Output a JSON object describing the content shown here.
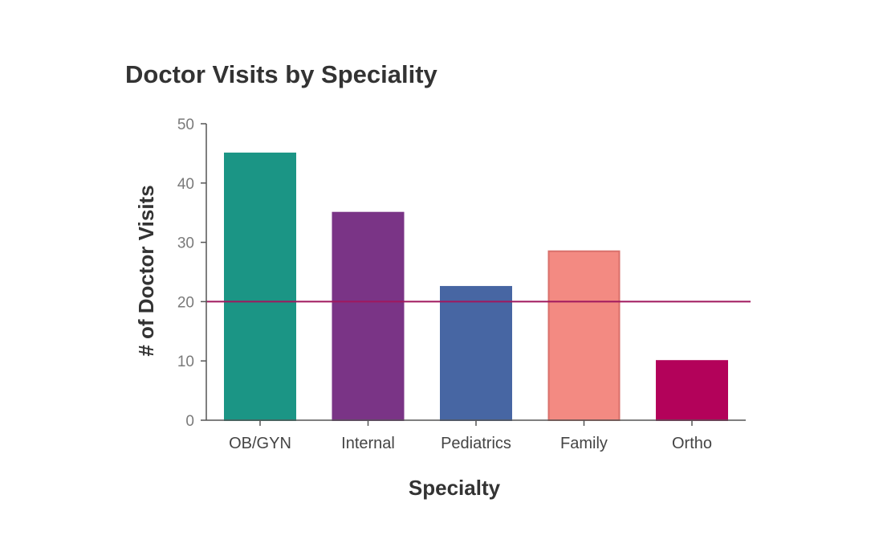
{
  "chart_data": {
    "type": "bar",
    "title": "Doctor Visits by Speciality",
    "xlabel": "Specialty",
    "ylabel": "# of Doctor Visits",
    "categories": [
      "OB/GYN",
      "Internal",
      "Pediatrics",
      "Family",
      "Ortho"
    ],
    "values": [
      45,
      35,
      22.5,
      28.5,
      10
    ],
    "colors": [
      "#1b9585",
      "#7a3486",
      "#4766a3",
      "#f38a82",
      "#b3025a"
    ],
    "bar_stroke_colors": [
      "#1b9585",
      "#7a3486",
      "#4766a3",
      "#d9706b",
      "#b3025a"
    ],
    "ylim": [
      0,
      50
    ],
    "yticks": [
      0,
      10,
      20,
      30,
      40,
      50
    ],
    "reference_line": {
      "value": 20,
      "color": "#a0185e"
    },
    "grid": false,
    "legend": "none"
  }
}
